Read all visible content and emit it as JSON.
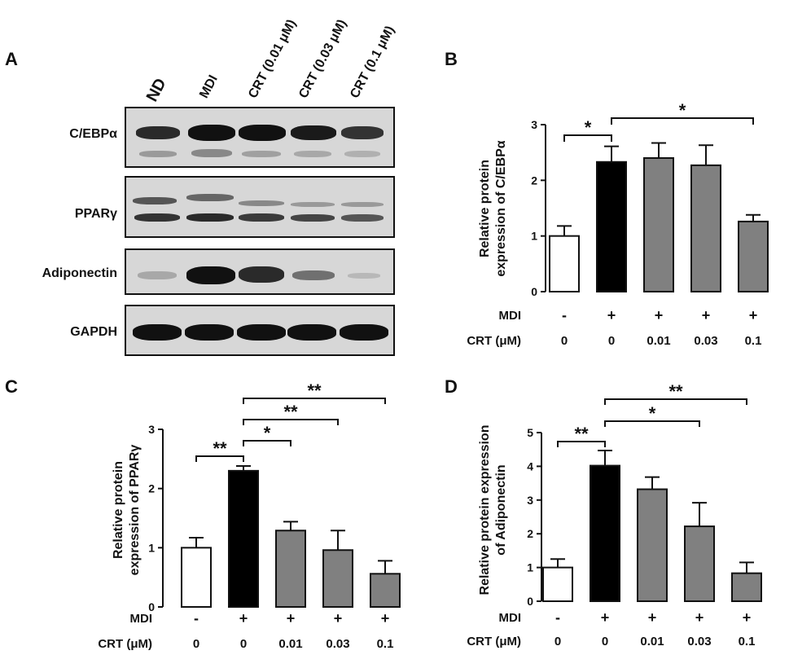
{
  "panels": {
    "a": "A",
    "b": "B",
    "c": "C",
    "d": "D"
  },
  "blot": {
    "lanes": [
      "ND",
      "MDI",
      "CRT (0.01 μM)",
      "CRT (0.03 μM)",
      "CRT (0.1 μM)"
    ],
    "proteins": [
      "C/EBPα",
      "PPARγ",
      "Adiponectin",
      "GAPDH"
    ]
  },
  "chart_data": [
    {
      "panel": "B",
      "type": "bar",
      "ylabel": "Relative protein\nexpression of C/EBPα",
      "ylim": [
        0,
        3
      ],
      "yticks": [
        0,
        1,
        2,
        3
      ],
      "categories": [
        "0",
        "0",
        "0.01",
        "0.03",
        "0.1"
      ],
      "row_labels": [
        "MDI",
        "CRT (μM)"
      ],
      "mdi": [
        "-",
        "+",
        "+",
        "+",
        "+"
      ],
      "crt": [
        "0",
        "0",
        "0.01",
        "0.03",
        "0.1"
      ],
      "values": [
        1.0,
        2.33,
        2.4,
        2.27,
        1.26
      ],
      "errors": [
        0.18,
        0.28,
        0.27,
        0.36,
        0.12
      ],
      "colors": [
        "#ffffff",
        "#000000",
        "#808080",
        "#808080",
        "#808080"
      ],
      "significance": [
        {
          "from": 0,
          "to": 1,
          "label": "*"
        },
        {
          "from": 1,
          "to": 4,
          "label": "*"
        }
      ]
    },
    {
      "panel": "C",
      "type": "bar",
      "ylabel": "Relative protein\nexpression of PPARγ",
      "ylim": [
        0,
        3
      ],
      "yticks": [
        0,
        1,
        2,
        3
      ],
      "categories": [
        "0",
        "0",
        "0.01",
        "0.03",
        "0.1"
      ],
      "row_labels": [
        "MDI",
        "CRT (μM)"
      ],
      "mdi": [
        "-",
        "+",
        "+",
        "+",
        "+"
      ],
      "crt": [
        "0",
        "0",
        "0.01",
        "0.03",
        "0.1"
      ],
      "values": [
        1.0,
        2.3,
        1.29,
        0.96,
        0.56
      ],
      "errors": [
        0.17,
        0.08,
        0.15,
        0.33,
        0.22
      ],
      "colors": [
        "#ffffff",
        "#000000",
        "#808080",
        "#808080",
        "#808080"
      ],
      "significance": [
        {
          "from": 0,
          "to": 1,
          "label": "**"
        },
        {
          "from": 1,
          "to": 2,
          "label": "*"
        },
        {
          "from": 1,
          "to": 3,
          "label": "**"
        },
        {
          "from": 1,
          "to": 4,
          "label": "**"
        }
      ]
    },
    {
      "panel": "D",
      "type": "bar",
      "ylabel": "Relative protein expression\nof Adiponectin",
      "ylim": [
        0,
        5
      ],
      "yticks": [
        0,
        1,
        2,
        3,
        4,
        5
      ],
      "categories": [
        "0",
        "0",
        "0.01",
        "0.03",
        "0.1"
      ],
      "row_labels": [
        "MDI",
        "CRT (μM)"
      ],
      "mdi": [
        "-",
        "+",
        "+",
        "+",
        "+"
      ],
      "crt": [
        "0",
        "0",
        "0.01",
        "0.03",
        "0.1"
      ],
      "values": [
        1.0,
        4.02,
        3.32,
        2.22,
        0.83
      ],
      "errors": [
        0.25,
        0.45,
        0.36,
        0.7,
        0.32
      ],
      "colors": [
        "#ffffff",
        "#000000",
        "#808080",
        "#808080",
        "#808080"
      ],
      "significance": [
        {
          "from": 0,
          "to": 1,
          "label": "**"
        },
        {
          "from": 1,
          "to": 3,
          "label": "*"
        },
        {
          "from": 1,
          "to": 4,
          "label": "**"
        }
      ]
    }
  ]
}
